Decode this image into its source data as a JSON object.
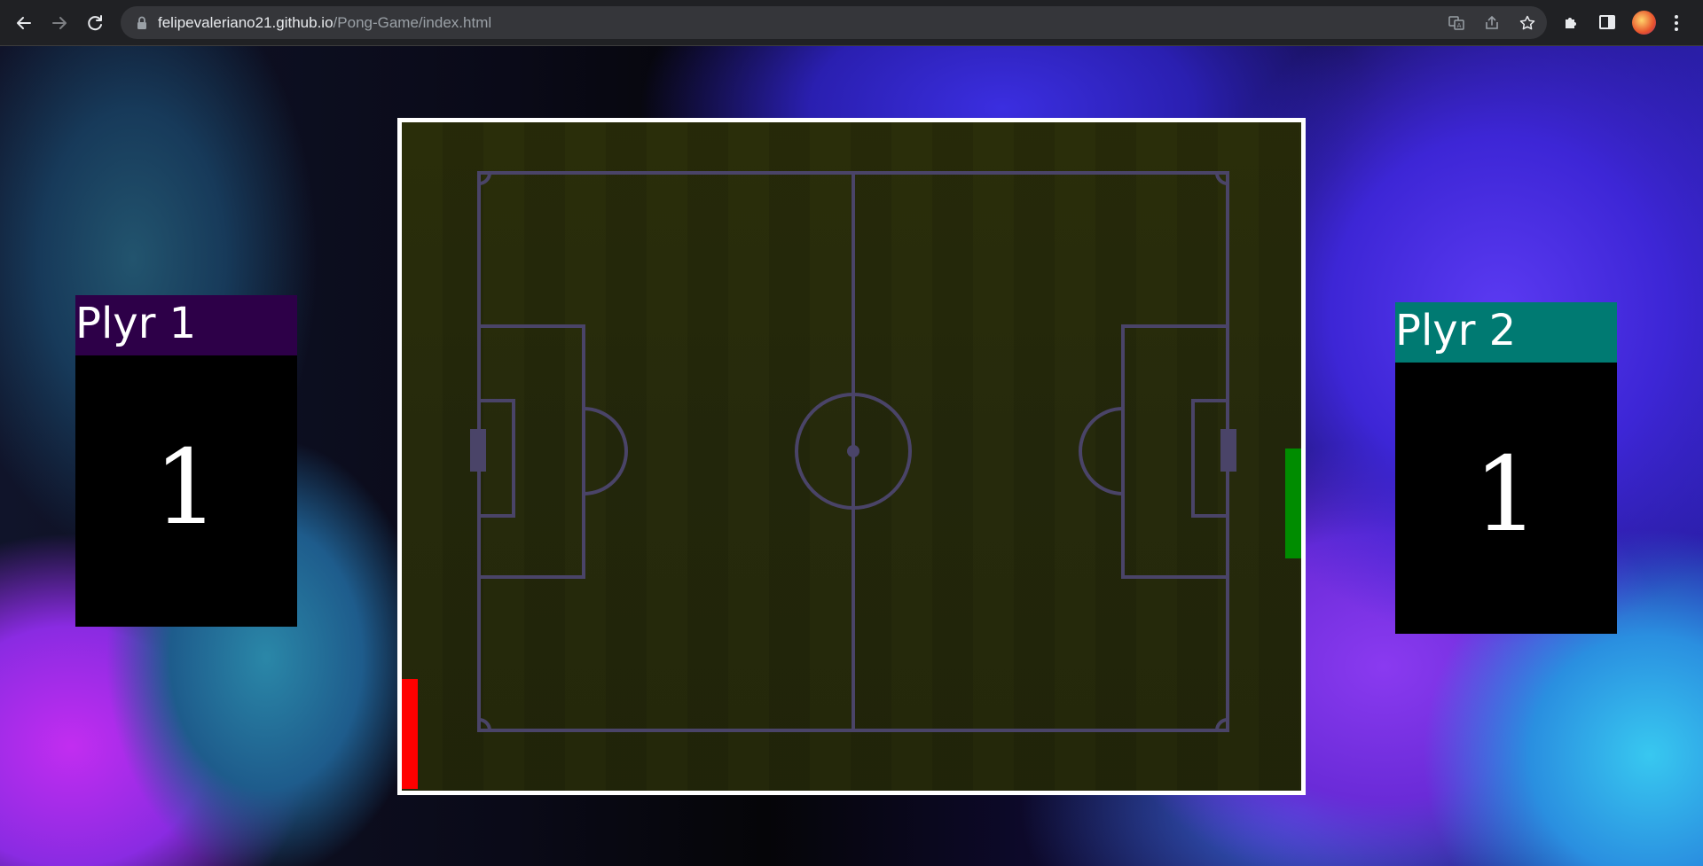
{
  "browser": {
    "url_host": "felipevaleriano21.github.io",
    "url_path": "/Pong-Game/index.html",
    "icons": [
      "back-icon",
      "forward-icon",
      "reload-icon",
      "lock-icon",
      "translate-icon",
      "share-icon",
      "star-icon",
      "extensions-icon",
      "side-panel-icon",
      "avatar",
      "menu-icon"
    ]
  },
  "game": {
    "player1": {
      "label": "Plyr 1",
      "score": "1",
      "header_color": "#2d0048",
      "paddle_color": "#ff0000"
    },
    "player2": {
      "label": "Plyr 2",
      "score": "1",
      "header_color": "#007a72",
      "paddle_color": "#008c00"
    },
    "field": {
      "border_color": "#ffffff",
      "line_color": "#4a4468"
    }
  }
}
